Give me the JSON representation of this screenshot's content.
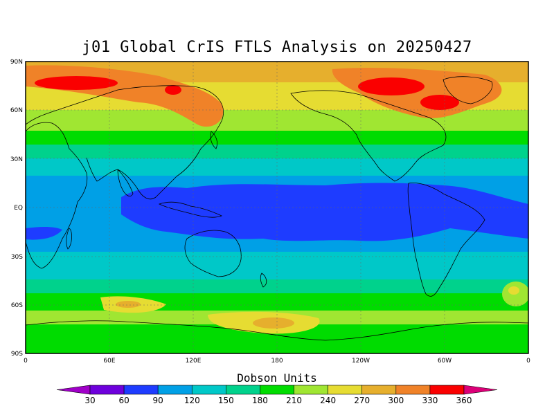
{
  "title": "j01 Global CrIS FTLS Analysis on 20250427",
  "lat_labels": [
    "90N",
    "60N",
    "30N",
    "EQ",
    "30S",
    "60S",
    "90S"
  ],
  "lon_labels": [
    "0",
    "60E",
    "120E",
    "180",
    "120W",
    "60W",
    "0"
  ],
  "colorbar": {
    "title": "Dobson Units",
    "ticks": [
      "30",
      "60",
      "90",
      "120",
      "150",
      "180",
      "210",
      "240",
      "270",
      "300",
      "330",
      "360"
    ],
    "colors": [
      "#a000c8",
      "#6e00dc",
      "#1e3cff",
      "#00a0e6",
      "#00c8c8",
      "#00d28c",
      "#00dc00",
      "#a0e632",
      "#e6dc32",
      "#e6af2d",
      "#f08228",
      "#fa0000",
      "#dc0078"
    ]
  },
  "levels": {
    "c60": "#6e00dc",
    "c90": "#1e3cff",
    "c120": "#00a0e6",
    "c150": "#00c8c8",
    "c180": "#00d28c",
    "c210": "#00dc00",
    "c240": "#a0e632",
    "c270": "#e6dc32",
    "c300": "#e6af2d",
    "c330": "#f08228",
    "c360": "#fa0000"
  }
}
